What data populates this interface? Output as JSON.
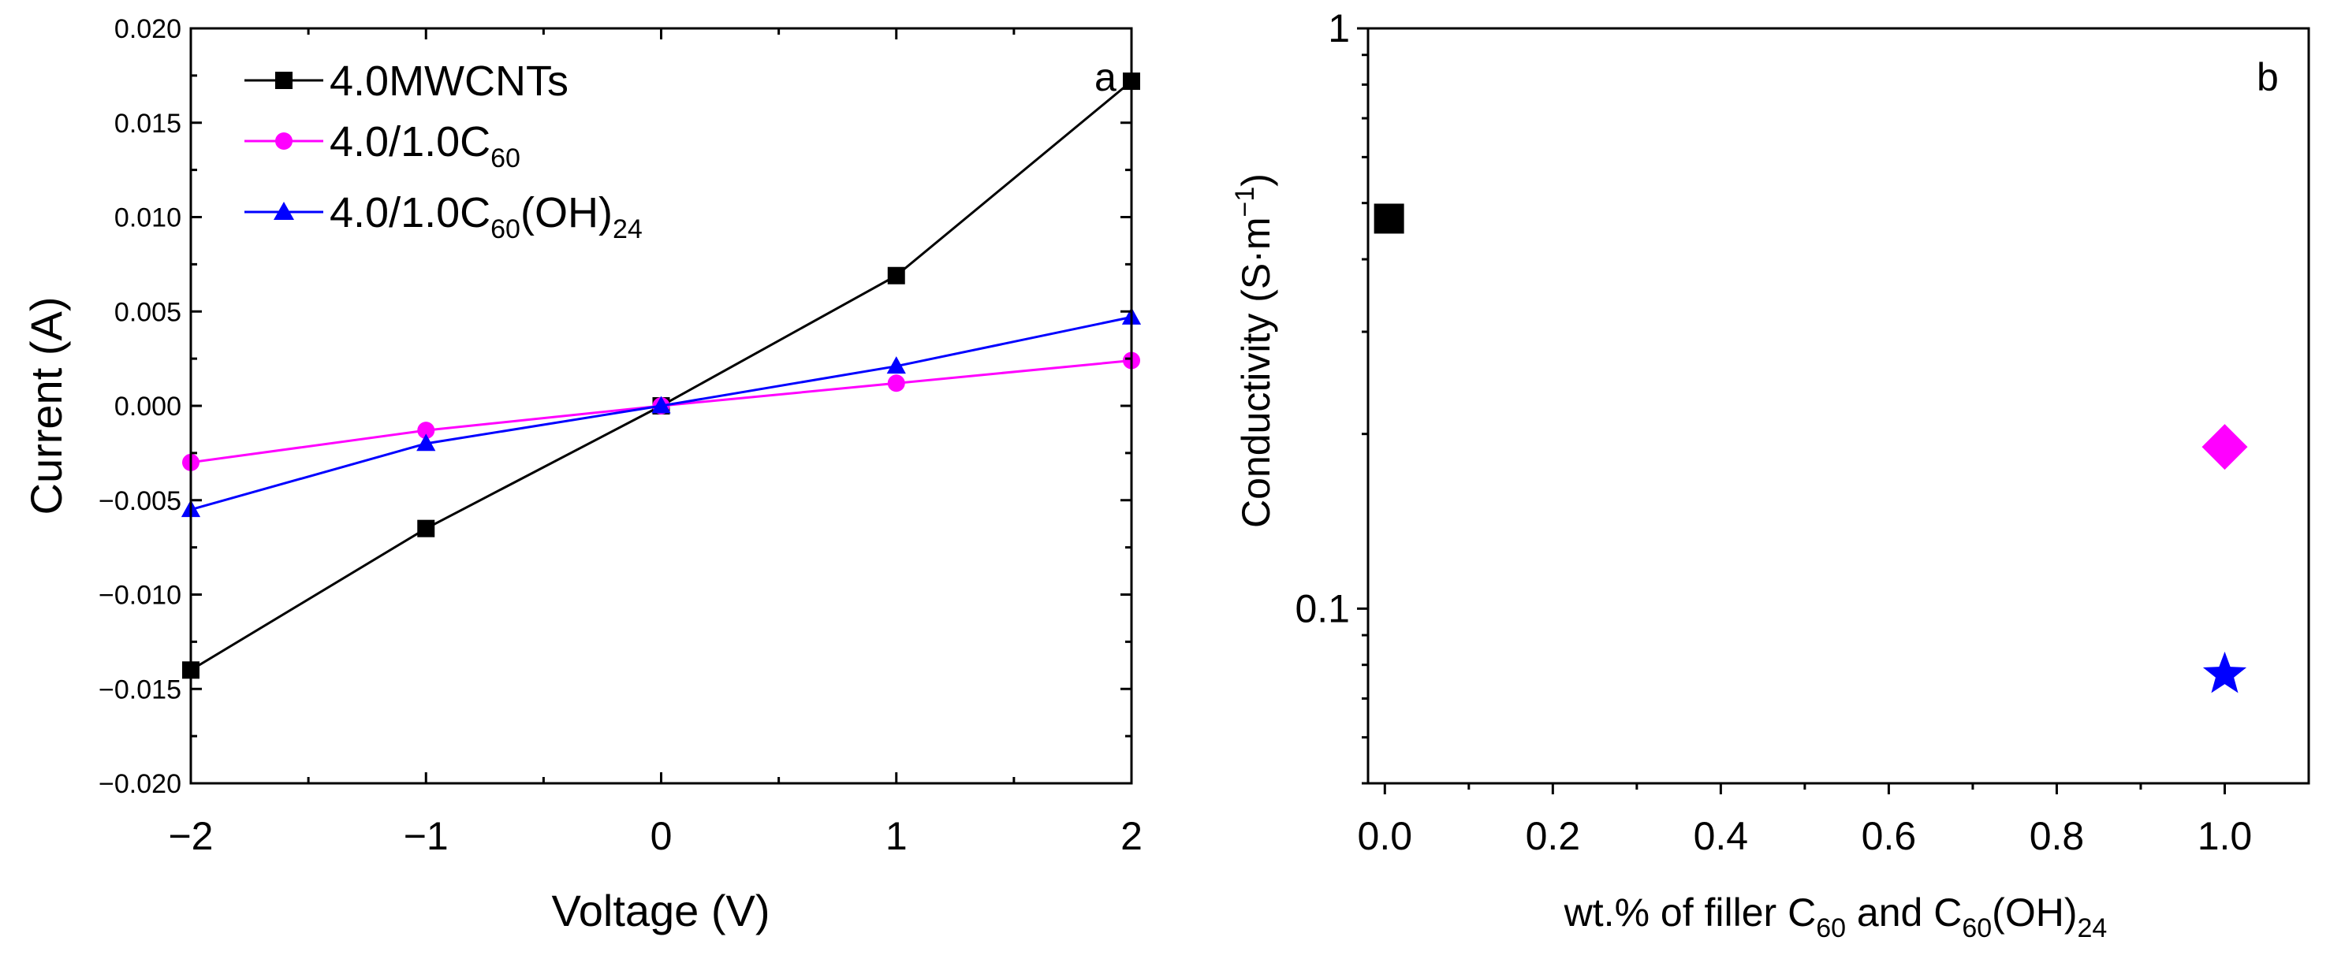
{
  "chart_data": [
    {
      "type": "line",
      "panel_label": "a",
      "xlabel": "Voltage (V)",
      "ylabel": "Current (A)",
      "xlim": [
        -2,
        2
      ],
      "ylim": [
        -0.02,
        0.02
      ],
      "x_ticks": [
        -2,
        -1,
        0,
        1,
        2
      ],
      "x_tick_labels": [
        "−2",
        "−1",
        "0",
        "1",
        "2"
      ],
      "y_ticks": [
        -0.02,
        -0.015,
        -0.01,
        -0.005,
        0,
        0.005,
        0.01,
        0.015,
        0.02
      ],
      "y_tick_labels": [
        "−0.020",
        "−0.015",
        "−0.010",
        "−0.005",
        "0.000",
        "0.005",
        "0.010",
        "0.015",
        "0.020"
      ],
      "x": [
        -2,
        -1,
        0,
        1,
        2
      ],
      "series": [
        {
          "name": "4.0MWCNTs",
          "legend_main": "4.0MWCNTs",
          "legend_sub": "",
          "legend_tail": "",
          "legend_sub2": "",
          "color": "#000000",
          "marker": "square",
          "values": [
            -0.014,
            -0.0065,
            0.0,
            0.0069,
            0.0172
          ]
        },
        {
          "name": "4.0/1.0C60",
          "legend_main": "4.0/1.0C",
          "legend_sub": "60",
          "legend_tail": "",
          "legend_sub2": "",
          "color": "#ff00ff",
          "marker": "circle",
          "values": [
            -0.003,
            -0.0013,
            0.0,
            0.0012,
            0.0024
          ]
        },
        {
          "name": "4.0/1.0C60(OH)24",
          "legend_main": "4.0/1.0C",
          "legend_sub": "60",
          "legend_tail": "(OH)",
          "legend_sub2": "24",
          "color": "#0000ff",
          "marker": "triangle",
          "values": [
            -0.0055,
            -0.002,
            0.0,
            0.0021,
            0.0047
          ]
        }
      ],
      "legend_position": "top-left"
    },
    {
      "type": "scatter",
      "panel_label": "b",
      "xlabel": {
        "p1": "wt.% of filler C",
        "s1": "60",
        "p2": " and C",
        "s2": "60",
        "p3": "(OH)",
        "s3": "24"
      },
      "ylabel": {
        "p1": "Conductivity (S·m",
        "sup": "−1",
        "p2": ")"
      },
      "xlim": [
        -0.02,
        1.1
      ],
      "ylim": [
        0.05,
        1
      ],
      "yscale": "log",
      "x_ticks": [
        0.0,
        0.2,
        0.4,
        0.6,
        0.8,
        1.0
      ],
      "x_tick_labels": [
        "0.0",
        "0.2",
        "0.4",
        "0.6",
        "0.8",
        "1.0"
      ],
      "y_ticks": [
        0.1,
        1
      ],
      "y_tick_labels": [
        "0.1",
        "1"
      ],
      "points": [
        {
          "name": "4.0MWCNTs",
          "x": 0.005,
          "y": 0.47,
          "color": "#000000",
          "marker": "square"
        },
        {
          "name": "4.0/1.0C60",
          "x": 1.0,
          "y": 0.19,
          "color": "#ff00ff",
          "marker": "diamond"
        },
        {
          "name": "4.0/1.0C60(OH)24",
          "x": 1.0,
          "y": 0.077,
          "color": "#0000ff",
          "marker": "star"
        }
      ]
    }
  ]
}
